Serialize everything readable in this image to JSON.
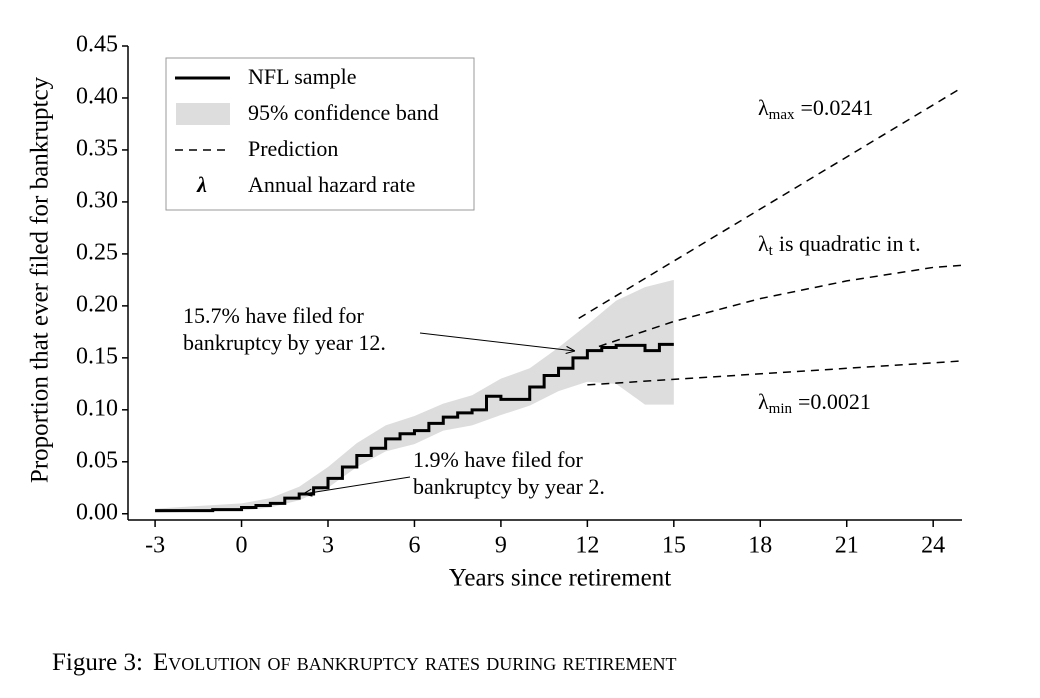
{
  "chart_data": {
    "type": "line",
    "xlabel": "Years since retirement",
    "ylabel": "Proportion that ever filed for bankruptcy",
    "xlim": [
      -3.94,
      25
    ],
    "ylim": [
      -0.006,
      0.45
    ],
    "xticks": [
      -3,
      0,
      3,
      6,
      9,
      12,
      15,
      18,
      21,
      24
    ],
    "yticks": [
      {
        "value": 0,
        "label": "0.00"
      },
      {
        "value": 0.05,
        "label": "0.05"
      },
      {
        "value": 0.1,
        "label": "0.10"
      },
      {
        "value": 0.15,
        "label": "0.15"
      },
      {
        "value": 0.2,
        "label": "0.20"
      },
      {
        "value": 0.25,
        "label": "0.25"
      },
      {
        "value": 0.3,
        "label": "0.30"
      },
      {
        "value": 0.35,
        "label": "0.35"
      },
      {
        "value": 0.4,
        "label": "0.40"
      },
      {
        "value": 0.45,
        "label": "0.45"
      }
    ],
    "grid": false,
    "legend_position": "upper left",
    "series": [
      {
        "name": "NFL sample",
        "color": "#000000",
        "step": true,
        "x": [
          -3,
          -2,
          -1,
          0,
          0.5,
          1,
          1.5,
          2,
          2.5,
          3,
          3.5,
          4,
          4.5,
          5,
          5.5,
          6,
          6.5,
          7,
          7.5,
          8,
          8.5,
          9,
          9.5,
          10,
          10.5,
          11,
          11.5,
          12,
          12.5,
          13,
          13.5,
          14,
          14.5,
          15
        ],
        "values": [
          0.003,
          0.003,
          0.004,
          0.006,
          0.008,
          0.01,
          0.015,
          0.019,
          0.025,
          0.034,
          0.045,
          0.056,
          0.063,
          0.072,
          0.077,
          0.08,
          0.087,
          0.093,
          0.097,
          0.1,
          0.113,
          0.11,
          0.11,
          0.122,
          0.133,
          0.14,
          0.15,
          0.157,
          0.16,
          0.162,
          0.162,
          0.157,
          0.163,
          0.163
        ]
      },
      {
        "name": "95% confidence band",
        "color": "#dddddd",
        "x": [
          -3,
          0,
          1,
          2,
          3,
          4,
          5,
          6,
          7,
          8,
          9,
          10,
          11,
          12,
          13,
          14,
          15
        ],
        "lower": [
          0.001,
          0.003,
          0.006,
          0.013,
          0.025,
          0.045,
          0.06,
          0.067,
          0.08,
          0.085,
          0.095,
          0.104,
          0.118,
          0.127,
          0.125,
          0.105,
          0.105
        ],
        "upper": [
          0.005,
          0.01,
          0.015,
          0.026,
          0.045,
          0.068,
          0.085,
          0.094,
          0.106,
          0.114,
          0.13,
          0.14,
          0.16,
          0.182,
          0.205,
          0.218,
          0.225
        ]
      }
    ],
    "predictions": {
      "name": "Prediction",
      "color": "#000000",
      "lines": [
        {
          "x": [
            11.7,
            25
          ],
          "values": [
            0.188,
            0.41
          ],
          "label": {
            "symbol": "λ",
            "sub": "max",
            "text": "=0.0241"
          }
        },
        {
          "x": [
            12.4,
            15,
            18,
            21,
            24,
            25
          ],
          "values": [
            0.161,
            0.185,
            0.207,
            0.224,
            0.237,
            0.239
          ],
          "label": {
            "symbol": "λ",
            "sub": "t",
            "text": "is quadratic in t."
          }
        },
        {
          "x": [
            12,
            25
          ],
          "values": [
            0.124,
            0.147
          ],
          "label": {
            "symbol": "λ",
            "sub": "min",
            "text": "=0.0021"
          }
        }
      ]
    },
    "legend_note": {
      "symbol": "λ",
      "text": "Annual hazard rate"
    },
    "annotations": [
      {
        "lines": [
          "15.7% have filed for",
          "bankruptcy by year 12."
        ]
      },
      {
        "lines": [
          "1.9% have filed for",
          "bankruptcy by year 2."
        ]
      }
    ],
    "caption": {
      "label": "Figure 3:",
      "text": "Evolution of bankruptcy rates during retirement"
    }
  }
}
